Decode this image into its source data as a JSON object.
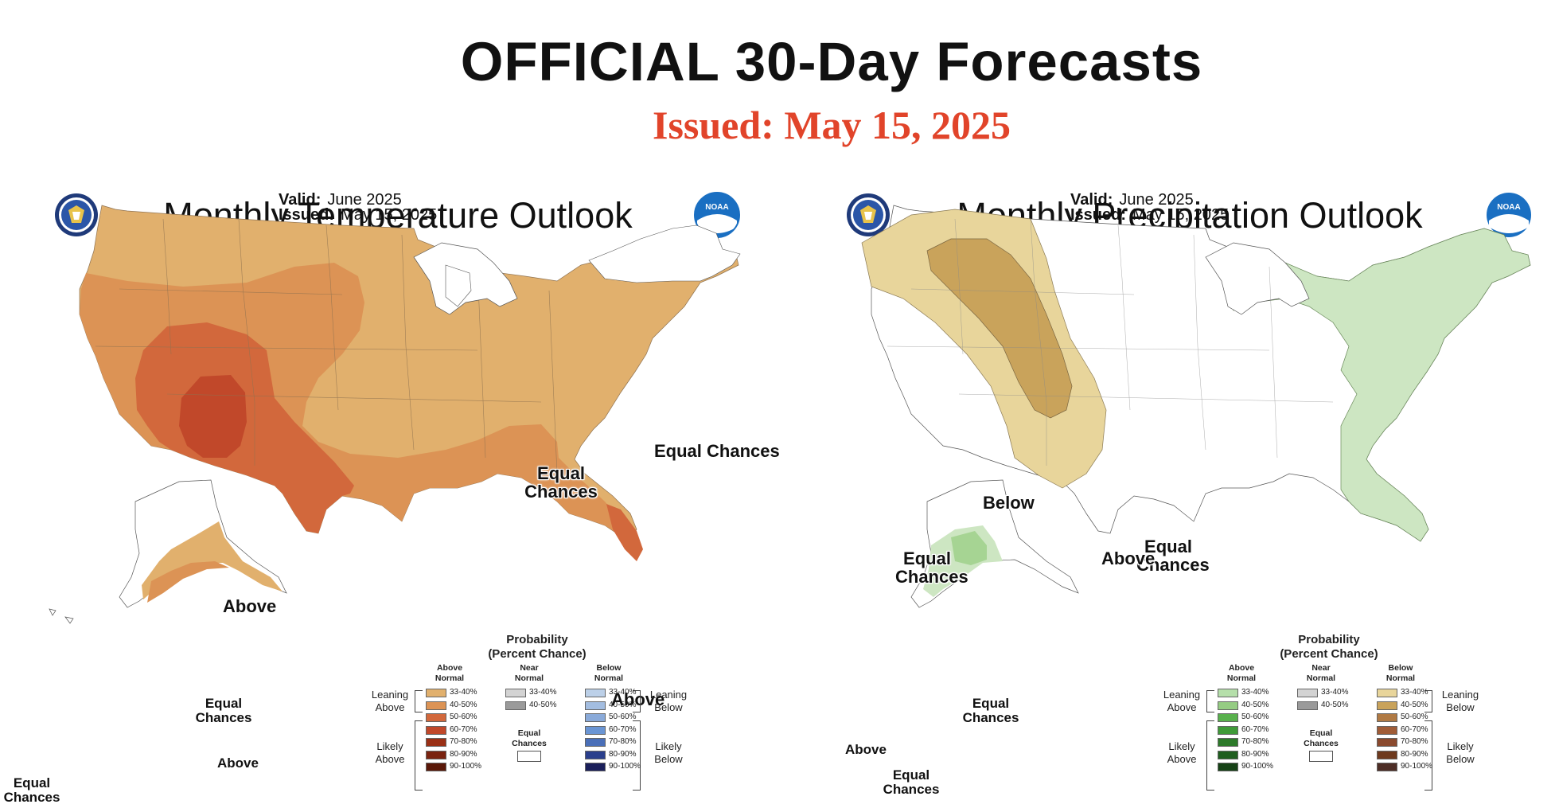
{
  "header": {
    "title": "OFFICIAL 30-Day Forecasts",
    "issued": "Issued: May 15, 2025"
  },
  "temperature": {
    "title": "Monthly Temperature Outlook",
    "valid_label": "Valid:",
    "valid_value": "June 2025",
    "issued_label": "Issued:",
    "issued_value": "May 15, 2025",
    "labels": {
      "equal_ne": "Equal Chances",
      "equal_gl": "Equal Chances",
      "above_sw": "Above",
      "above_fl": "Above",
      "equal_ak": "Equal Chances",
      "above_ak": "Above",
      "equal_hi": "Equal Chances"
    },
    "colors": {
      "c33": "#e1b06d",
      "c40": "#dc9355",
      "c50": "#d2683c",
      "c60": "#c1482a",
      "c70": "#9a3016",
      "c80": "#7a2310",
      "c90": "#5a1808"
    }
  },
  "precipitation": {
    "title": "Monthly Precipitation Outlook",
    "valid_label": "Valid:",
    "valid_value": "June 2025",
    "issued_label": "Issued:",
    "issued_value": "May 15, 2025",
    "labels": {
      "below_west": "Below",
      "equal_west": "Equal Chances",
      "equal_central": "Equal Chances",
      "above_east": "Above",
      "equal_ak": "Equal Chances",
      "above_ak": "Above",
      "equal_ak_se": "Equal Chances"
    },
    "colors": {
      "below33": "#e8d59b",
      "below40": "#c9a35b",
      "above33": "#cde6c2",
      "above40": "#a6d493"
    }
  },
  "legend": {
    "title_line1": "Probability",
    "title_line2": "(Percent Chance)",
    "col_above": "Above Normal",
    "col_near": "Near Normal",
    "col_below": "Below Normal",
    "leaning_above": "Leaning Above",
    "likely_above": "Likely Above",
    "leaning_below": "Leaning Below",
    "likely_below": "Likely Below",
    "equal_chances": "Equal Chances",
    "bins": [
      "33-40%",
      "40-50%",
      "50-60%",
      "60-70%",
      "70-80%",
      "80-90%",
      "90-100%"
    ],
    "temp_above_colors": [
      "#e1b06d",
      "#dc9355",
      "#d2683c",
      "#c1482a",
      "#9a3016",
      "#7a2310",
      "#5a1808"
    ],
    "near_colors": [
      "#d3d3d3",
      "#9a9a9a"
    ],
    "temp_below_colors": [
      "#bcd0e8",
      "#a3bde0",
      "#8aaad9",
      "#6a95d4",
      "#4a6fb8",
      "#2a3f8c",
      "#1a1f5a"
    ],
    "precip_above_colors": [
      "#b5dfaa",
      "#95cc83",
      "#59b14d",
      "#3f9a38",
      "#2d7a2a",
      "#1f5e1f",
      "#164216"
    ],
    "precip_below_colors": [
      "#e8d59b",
      "#c9a35b",
      "#b07a44",
      "#a05c37",
      "#8a4a2e",
      "#6e3a1e",
      "#4e2e26"
    ]
  }
}
